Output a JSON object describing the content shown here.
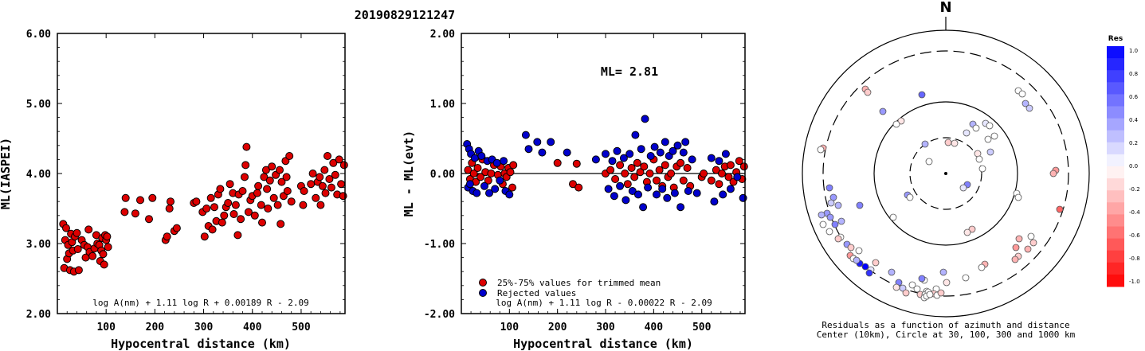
{
  "title": "20190829121247",
  "chart_data": [
    {
      "type": "scatter",
      "xlabel": "Hypocentral distance (km)",
      "ylabel": "ML(IASPEI)",
      "xlim": [
        0,
        590
      ],
      "ylim": [
        2.0,
        6.0
      ],
      "xticks": [
        "100",
        "200",
        "300",
        "400",
        "500"
      ],
      "yticks": [
        "2.00",
        "3.00",
        "4.00",
        "5.00",
        "6.00"
      ],
      "formula": "log A(nm) + 1.11 log R + 0.00189 R - 2.09",
      "point_color": "#dd0000",
      "points": [
        [
          12,
          3.28
        ],
        [
          14,
          2.65
        ],
        [
          16,
          3.05
        ],
        [
          18,
          3.22
        ],
        [
          20,
          2.78
        ],
        [
          22,
          2.98
        ],
        [
          24,
          2.86
        ],
        [
          26,
          2.62
        ],
        [
          28,
          3.14
        ],
        [
          30,
          3.02
        ],
        [
          32,
          2.9
        ],
        [
          34,
          2.6
        ],
        [
          36,
          3.1
        ],
        [
          40,
          3.15
        ],
        [
          42,
          2.92
        ],
        [
          44,
          2.62
        ],
        [
          50,
          3.05
        ],
        [
          55,
          2.98
        ],
        [
          58,
          2.8
        ],
        [
          62,
          2.95
        ],
        [
          64,
          3.2
        ],
        [
          66,
          2.88
        ],
        [
          72,
          2.82
        ],
        [
          76,
          2.93
        ],
        [
          80,
          3.12
        ],
        [
          82,
          3.0
        ],
        [
          86,
          2.98
        ],
        [
          88,
          2.75
        ],
        [
          90,
          2.9
        ],
        [
          92,
          3.08
        ],
        [
          94,
          2.85
        ],
        [
          96,
          2.7
        ],
        [
          98,
          3.12
        ],
        [
          100,
          3.05
        ],
        [
          102,
          3.1
        ],
        [
          104,
          2.95
        ],
        [
          138,
          3.45
        ],
        [
          140,
          3.65
        ],
        [
          160,
          3.43
        ],
        [
          170,
          3.62
        ],
        [
          188,
          3.35
        ],
        [
          195,
          3.65
        ],
        [
          222,
          3.05
        ],
        [
          225,
          3.1
        ],
        [
          230,
          3.5
        ],
        [
          232,
          3.6
        ],
        [
          240,
          3.18
        ],
        [
          245,
          3.22
        ],
        [
          280,
          3.58
        ],
        [
          285,
          3.6
        ],
        [
          298,
          3.45
        ],
        [
          302,
          3.1
        ],
        [
          306,
          3.5
        ],
        [
          310,
          3.25
        ],
        [
          315,
          3.65
        ],
        [
          318,
          3.2
        ],
        [
          322,
          3.52
        ],
        [
          326,
          3.32
        ],
        [
          330,
          3.7
        ],
        [
          334,
          3.78
        ],
        [
          338,
          3.3
        ],
        [
          342,
          3.4
        ],
        [
          346,
          3.52
        ],
        [
          350,
          3.58
        ],
        [
          354,
          3.85
        ],
        [
          360,
          3.72
        ],
        [
          362,
          3.42
        ],
        [
          366,
          3.55
        ],
        [
          370,
          3.12
        ],
        [
          372,
          3.7
        ],
        [
          376,
          3.35
        ],
        [
          380,
          3.75
        ],
        [
          384,
          3.95
        ],
        [
          386,
          4.12
        ],
        [
          388,
          4.38
        ],
        [
          392,
          3.45
        ],
        [
          396,
          3.62
        ],
        [
          400,
          3.68
        ],
        [
          405,
          3.4
        ],
        [
          410,
          3.72
        ],
        [
          412,
          3.82
        ],
        [
          418,
          3.55
        ],
        [
          420,
          3.3
        ],
        [
          424,
          3.95
        ],
        [
          428,
          4.05
        ],
        [
          430,
          3.78
        ],
        [
          432,
          3.5
        ],
        [
          436,
          3.9
        ],
        [
          440,
          4.1
        ],
        [
          444,
          3.65
        ],
        [
          448,
          3.98
        ],
        [
          452,
          3.55
        ],
        [
          456,
          4.05
        ],
        [
          458,
          3.28
        ],
        [
          460,
          3.88
        ],
        [
          464,
          3.68
        ],
        [
          468,
          4.18
        ],
        [
          470,
          3.95
        ],
        [
          472,
          3.75
        ],
        [
          476,
          4.25
        ],
        [
          480,
          3.6
        ],
        [
          500,
          3.82
        ],
        [
          504,
          3.55
        ],
        [
          506,
          3.75
        ],
        [
          520,
          3.85
        ],
        [
          524,
          4.0
        ],
        [
          530,
          3.65
        ],
        [
          534,
          3.88
        ],
        [
          538,
          3.95
        ],
        [
          540,
          3.55
        ],
        [
          544,
          3.82
        ],
        [
          548,
          4.05
        ],
        [
          550,
          3.72
        ],
        [
          554,
          4.25
        ],
        [
          558,
          3.92
        ],
        [
          562,
          3.8
        ],
        [
          566,
          4.15
        ],
        [
          570,
          3.98
        ],
        [
          574,
          3.7
        ],
        [
          578,
          4.2
        ],
        [
          582,
          3.85
        ],
        [
          586,
          3.68
        ],
        [
          588,
          4.12
        ]
      ]
    },
    {
      "type": "scatter",
      "xlabel": "Hypocentral distance (km)",
      "ylabel": "ML - ML(evt)",
      "xlim": [
        0,
        590
      ],
      "ylim": [
        -2.0,
        2.0
      ],
      "xticks": [
        "100",
        "200",
        "300",
        "400",
        "500"
      ],
      "yticks": [
        "-2.00",
        "-1.00",
        "0.00",
        "1.00",
        "2.00"
      ],
      "annotation": "ML= 2.81",
      "formula": "log A(nm) + 1.11 log R - 0.00022 R - 2.09",
      "series": [
        {
          "name": "25%-75% values for trimmed mean",
          "color": "#dd0000",
          "points": [
            [
              14,
              0.05
            ],
            [
              18,
              -0.08
            ],
            [
              22,
              0.15
            ],
            [
              26,
              0.0
            ],
            [
              30,
              -0.12
            ],
            [
              34,
              0.08
            ],
            [
              40,
              -0.05
            ],
            [
              44,
              0.2
            ],
            [
              50,
              0.02
            ],
            [
              56,
              -0.1
            ],
            [
              62,
              0.0
            ],
            [
              68,
              0.12
            ],
            [
              76,
              -0.02
            ],
            [
              82,
              0.1
            ],
            [
              86,
              -0.15
            ],
            [
              90,
              0.0
            ],
            [
              94,
              -0.05
            ],
            [
              98,
              0.08
            ],
            [
              102,
              0.02
            ],
            [
              106,
              -0.2
            ],
            [
              108,
              0.12
            ],
            [
              200,
              0.15
            ],
            [
              232,
              -0.15
            ],
            [
              240,
              0.14
            ],
            [
              244,
              -0.2
            ],
            [
              300,
              0.0
            ],
            [
              310,
              0.05
            ],
            [
              320,
              -0.08
            ],
            [
              330,
              0.12
            ],
            [
              340,
              0.0
            ],
            [
              346,
              -0.15
            ],
            [
              354,
              0.08
            ],
            [
              360,
              -0.05
            ],
            [
              366,
              0.15
            ],
            [
              372,
              0.02
            ],
            [
              380,
              0.1
            ],
            [
              386,
              -0.12
            ],
            [
              392,
              0.0
            ],
            [
              400,
              0.2
            ],
            [
              406,
              -0.1
            ],
            [
              412,
              0.05
            ],
            [
              418,
              -0.18
            ],
            [
              424,
              0.12
            ],
            [
              430,
              -0.05
            ],
            [
              436,
              0.0
            ],
            [
              442,
              -0.2
            ],
            [
              448,
              0.1
            ],
            [
              456,
              0.15
            ],
            [
              462,
              -0.1
            ],
            [
              470,
              0.08
            ],
            [
              476,
              -0.18
            ],
            [
              500,
              -0.05
            ],
            [
              504,
              0.0
            ],
            [
              520,
              -0.1
            ],
            [
              530,
              0.05
            ],
            [
              536,
              -0.15
            ],
            [
              542,
              0.0
            ],
            [
              548,
              0.1
            ],
            [
              556,
              -0.05
            ],
            [
              560,
              0.12
            ],
            [
              566,
              -0.12
            ],
            [
              572,
              0.02
            ],
            [
              578,
              0.18
            ],
            [
              584,
              -0.08
            ],
            [
              588,
              0.1
            ]
          ]
        },
        {
          "name": "Rejected values",
          "color": "#0000cc",
          "points": [
            [
              12,
              0.42
            ],
            [
              14,
              -0.2
            ],
            [
              16,
              0.35
            ],
            [
              18,
              -0.15
            ],
            [
              20,
              0.28
            ],
            [
              24,
              -0.25
            ],
            [
              28,
              0.22
            ],
            [
              32,
              -0.28
            ],
            [
              36,
              0.32
            ],
            [
              42,
              0.25
            ],
            [
              48,
              -0.18
            ],
            [
              54,
              0.18
            ],
            [
              58,
              -0.28
            ],
            [
              64,
              0.2
            ],
            [
              70,
              -0.22
            ],
            [
              74,
              0.15
            ],
            [
              80,
              -0.1
            ],
            [
              88,
              0.18
            ],
            [
              92,
              -0.25
            ],
            [
              100,
              -0.3
            ],
            [
              134,
              0.55
            ],
            [
              140,
              0.35
            ],
            [
              158,
              0.45
            ],
            [
              168,
              0.3
            ],
            [
              186,
              0.45
            ],
            [
              220,
              0.3
            ],
            [
              280,
              0.2
            ],
            [
              300,
              0.28
            ],
            [
              306,
              -0.22
            ],
            [
              314,
              0.18
            ],
            [
              318,
              -0.32
            ],
            [
              324,
              0.32
            ],
            [
              330,
              -0.18
            ],
            [
              338,
              0.22
            ],
            [
              342,
              -0.38
            ],
            [
              350,
              0.28
            ],
            [
              356,
              -0.25
            ],
            [
              362,
              0.55
            ],
            [
              368,
              -0.3
            ],
            [
              374,
              0.35
            ],
            [
              378,
              -0.48
            ],
            [
              382,
              0.78
            ],
            [
              388,
              -0.2
            ],
            [
              394,
              0.25
            ],
            [
              402,
              0.38
            ],
            [
              406,
              -0.3
            ],
            [
              414,
              0.3
            ],
            [
              418,
              -0.22
            ],
            [
              424,
              0.45
            ],
            [
              428,
              -0.35
            ],
            [
              432,
              0.25
            ],
            [
              440,
              0.32
            ],
            [
              444,
              -0.28
            ],
            [
              450,
              0.4
            ],
            [
              456,
              -0.48
            ],
            [
              462,
              0.3
            ],
            [
              466,
              0.45
            ],
            [
              472,
              -0.25
            ],
            [
              480,
              0.2
            ],
            [
              490,
              -0.28
            ],
            [
              520,
              0.22
            ],
            [
              526,
              -0.4
            ],
            [
              536,
              0.18
            ],
            [
              544,
              -0.3
            ],
            [
              550,
              0.28
            ],
            [
              560,
              -0.22
            ],
            [
              574,
              -0.05
            ],
            [
              586,
              -0.35
            ]
          ]
        }
      ]
    }
  ],
  "polar": {
    "north_label": "N",
    "caption_line1": "Residuals as a function of azimuth and distance",
    "caption_line2": "Center (10km), Circle at 30, 100, 300 and 1000 km",
    "colorbar_title": "Res",
    "colorbar_labels": [
      "1.0",
      "0.8",
      "0.6",
      "0.4",
      "0.2",
      "0.0",
      "-0.2",
      "-0.4",
      "-0.6",
      "-0.8",
      "-1.0"
    ],
    "positive_color": "#0000ff",
    "negative_color": "#ff0000"
  }
}
